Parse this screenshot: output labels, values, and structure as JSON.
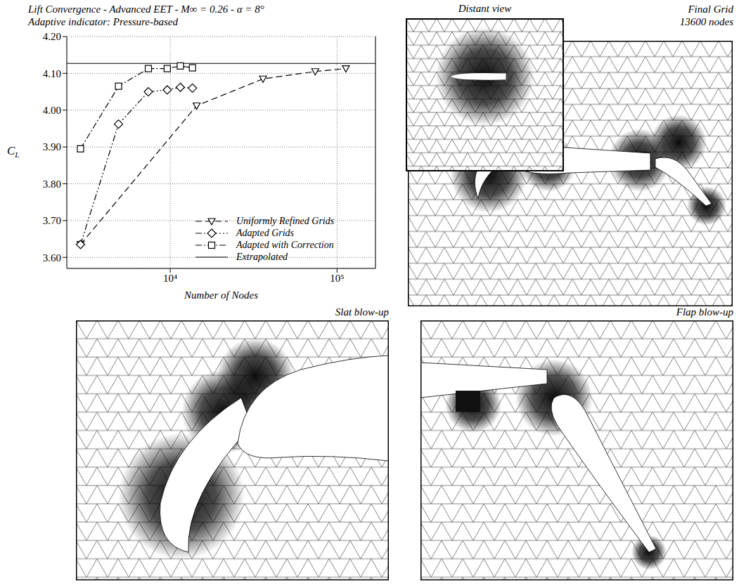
{
  "chart_data": {
    "type": "line",
    "title": "Lift Convergence - Advanced EET - M∞ = 0.26 - α = 8°",
    "subtitle": "Adaptive indicator: Pressure-based",
    "x_label": "Number of Nodes",
    "y_label": "CL",
    "log": "x",
    "xlim": [
      2400,
      170000
    ],
    "xticks": [
      {
        "value": 10000,
        "label": "10⁴"
      },
      {
        "value": 100000,
        "label": "10⁵"
      }
    ],
    "ylim": [
      3.57,
      4.2
    ],
    "yticks": [
      {
        "value": 3.6,
        "label": "3.60"
      },
      {
        "value": 3.7,
        "label": "3.70"
      },
      {
        "value": 3.8,
        "label": "3.80"
      },
      {
        "value": 3.9,
        "label": "3.90"
      },
      {
        "value": 4.0,
        "label": "4.00"
      },
      {
        "value": 4.1,
        "label": "4.10"
      },
      {
        "value": 4.2,
        "label": "4.20"
      }
    ],
    "grid": true,
    "legend": "lower right",
    "series": [
      {
        "name": "Uniformly Refined Grids",
        "color": "#000000",
        "marker": "triangle-down",
        "line_style": "dashed",
        "x": [
          2900,
          14400,
          36000,
          74000,
          113000
        ],
        "values": [
          3.635,
          4.012,
          4.085,
          4.105,
          4.113
        ]
      },
      {
        "name": "Adapted Grids",
        "color": "#000000",
        "marker": "diamond",
        "line_style": "dash-dot-dot",
        "x": [
          2900,
          4900,
          7400,
          9600,
          11500,
          13600
        ],
        "values": [
          3.635,
          3.962,
          4.05,
          4.055,
          4.062,
          4.06
        ]
      },
      {
        "name": "Adapted with Correction",
        "color": "#000000",
        "marker": "square",
        "line_style": "dash-dot",
        "x": [
          2900,
          4900,
          7400,
          9600,
          11500,
          13600
        ],
        "values": [
          3.895,
          4.065,
          4.113,
          4.113,
          4.12,
          4.115
        ]
      },
      {
        "name": "Extrapolated",
        "color": "#000000",
        "marker": "none",
        "line_style": "solid",
        "x": [
          2400,
          170000
        ],
        "values": [
          4.127,
          4.127
        ]
      }
    ]
  },
  "panels": [
    {
      "title": "Distant view"
    },
    {
      "title": "Final Grid",
      "subtitle": "13600 nodes"
    },
    {
      "title": "Slat blow-up"
    },
    {
      "title": "Flap blow-up"
    }
  ]
}
